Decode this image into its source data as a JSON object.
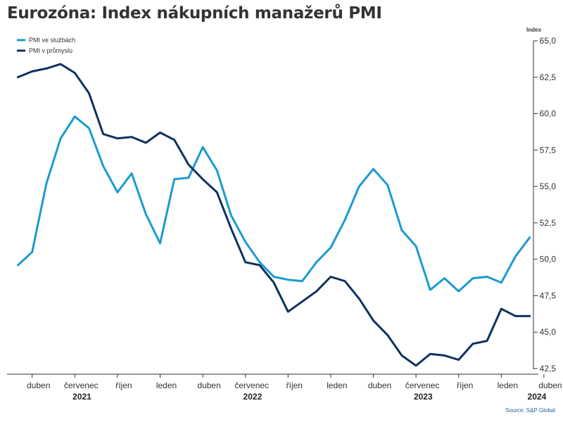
{
  "chart_data": {
    "type": "line",
    "title": "Eurozóna: Index nákupních manažerů PMI",
    "ylabel": "Index",
    "source": "Source: S&P Global",
    "ylim": [
      42.5,
      65.0
    ],
    "yticks": [
      "65,0",
      "62,5",
      "60,0",
      "57,5",
      "55,0",
      "52,5",
      "50,0",
      "47,5",
      "45,0",
      "42,5"
    ],
    "ytick_values": [
      65.0,
      62.5,
      60.0,
      57.5,
      55.0,
      52.5,
      50.0,
      47.5,
      45.0,
      42.5
    ],
    "x": [
      "2021-03",
      "2021-04",
      "2021-05",
      "2021-06",
      "2021-07",
      "2021-08",
      "2021-09",
      "2021-10",
      "2021-11",
      "2021-12",
      "2022-01",
      "2022-02",
      "2022-03",
      "2022-04",
      "2022-05",
      "2022-06",
      "2022-07",
      "2022-08",
      "2022-09",
      "2022-10",
      "2022-11",
      "2022-12",
      "2023-01",
      "2023-02",
      "2023-03",
      "2023-04",
      "2023-05",
      "2023-06",
      "2023-07",
      "2023-08",
      "2023-09",
      "2023-10",
      "2023-11",
      "2023-12",
      "2024-01",
      "2024-02",
      "2024-03"
    ],
    "xticks": [
      {
        "label": "duben",
        "x": "2021-04"
      },
      {
        "label": "červenec",
        "x": "2021-07"
      },
      {
        "label": "říjen",
        "x": "2021-10"
      },
      {
        "label": "leden",
        "x": "2022-01"
      },
      {
        "label": "duben",
        "x": "2022-04"
      },
      {
        "label": "červenec",
        "x": "2022-07"
      },
      {
        "label": "říjen",
        "x": "2022-10"
      },
      {
        "label": "leden",
        "x": "2023-01"
      },
      {
        "label": "duben",
        "x": "2023-04"
      },
      {
        "label": "červenec",
        "x": "2023-07"
      },
      {
        "label": "říjen",
        "x": "2023-10"
      },
      {
        "label": "leden",
        "x": "2024-01"
      },
      {
        "label": "duben",
        "x": "2024-04"
      }
    ],
    "year_labels": [
      {
        "label": "2021",
        "x": "2021-08"
      },
      {
        "label": "2022",
        "x": "2022-08"
      },
      {
        "label": "2023",
        "x": "2023-08"
      },
      {
        "label": "2024",
        "x": "2024-04"
      }
    ],
    "series": [
      {
        "name": "PMI ve službách",
        "color": "#1a9bd1",
        "values": [
          49.6,
          50.5,
          55.2,
          58.3,
          59.8,
          59.0,
          56.4,
          54.6,
          55.9,
          53.1,
          51.1,
          55.5,
          55.6,
          57.7,
          56.1,
          53.0,
          51.2,
          49.8,
          48.8,
          48.6,
          48.5,
          49.8,
          50.8,
          52.7,
          55.0,
          56.2,
          55.1,
          52.0,
          50.9,
          47.9,
          48.7,
          47.8,
          48.7,
          48.8,
          48.4,
          50.2,
          51.5
        ]
      },
      {
        "name": "PMI v průmyslu",
        "color": "#0d3261",
        "values": [
          62.5,
          62.9,
          63.1,
          63.4,
          62.8,
          61.4,
          58.6,
          58.3,
          58.4,
          58.0,
          58.7,
          58.2,
          56.5,
          55.5,
          54.6,
          52.1,
          49.8,
          49.6,
          48.4,
          46.4,
          47.1,
          47.8,
          48.8,
          48.5,
          47.3,
          45.8,
          44.8,
          43.4,
          42.7,
          43.5,
          43.4,
          43.1,
          44.2,
          44.4,
          46.6,
          46.1,
          46.1
        ]
      }
    ],
    "legend": "top-left",
    "grid": false
  }
}
